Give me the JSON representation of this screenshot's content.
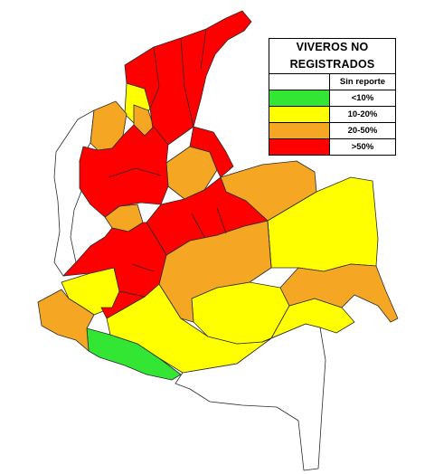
{
  "legend": {
    "title_line1": "VIVEROS NO",
    "title_line2": "REGISTRADOS",
    "items": [
      {
        "label": "Sin reporte",
        "color": "#ffffff"
      },
      {
        "label": "<10%",
        "color": "#33e633"
      },
      {
        "label": "10-20%",
        "color": "#ffff00"
      },
      {
        "label": "20-50%",
        "color": "#f5a623"
      },
      {
        "label": ">50%",
        "color": "#ff0000"
      }
    ]
  }
}
